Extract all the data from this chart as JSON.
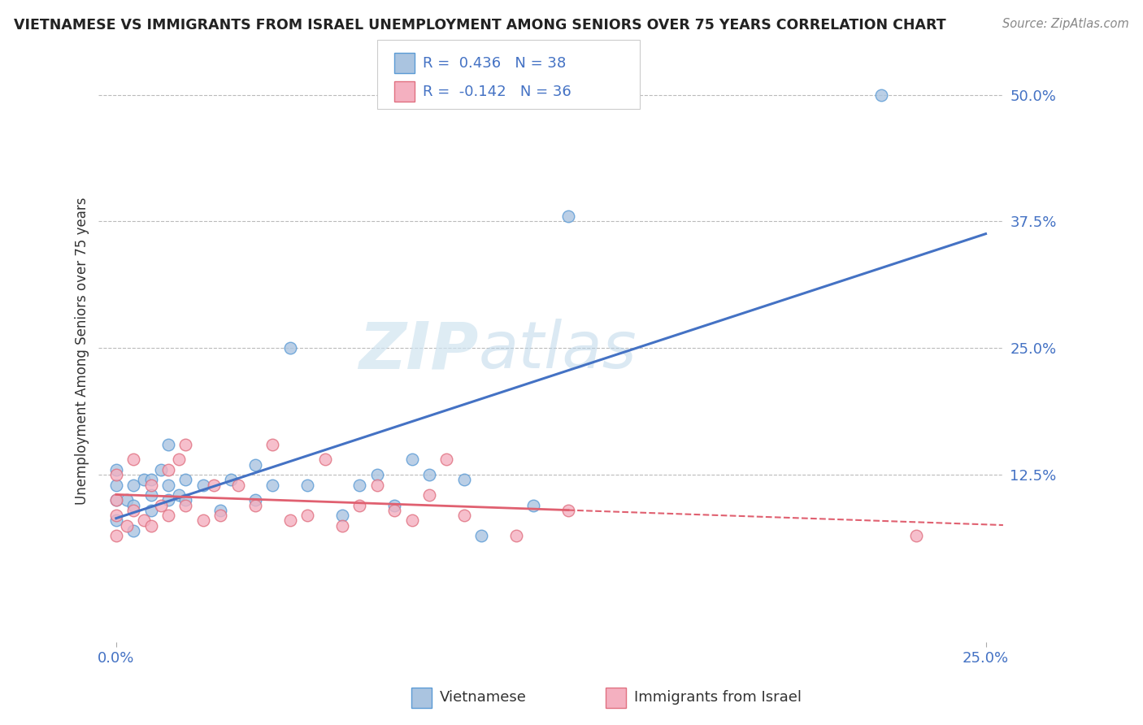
{
  "title": "VIETNAMESE VS IMMIGRANTS FROM ISRAEL UNEMPLOYMENT AMONG SENIORS OVER 75 YEARS CORRELATION CHART",
  "source": "Source: ZipAtlas.com",
  "ylabel": "Unemployment Among Seniors over 75 years",
  "xlim": [
    -0.005,
    0.255
  ],
  "ylim": [
    -0.04,
    0.535
  ],
  "ytick_values": [
    0.125,
    0.25,
    0.375,
    0.5
  ],
  "xtick_values": [
    0.0,
    0.25
  ],
  "r_vietnamese": 0.436,
  "n_vietnamese": 38,
  "r_israel": -0.142,
  "n_israel": 36,
  "color_vietnamese": "#aac4e0",
  "color_israel": "#f4b0c0",
  "edge_color_vietnamese": "#5b9bd5",
  "edge_color_israel": "#e07080",
  "line_color_vietnamese": "#4472c4",
  "line_color_israel": "#e06070",
  "watermark_color": "#d0e4f0",
  "background_color": "#ffffff",
  "tick_label_color": "#4472c4",
  "scatter_vietnamese_x": [
    0.0,
    0.0,
    0.0,
    0.0,
    0.003,
    0.005,
    0.005,
    0.008,
    0.01,
    0.01,
    0.01,
    0.013,
    0.015,
    0.015,
    0.015,
    0.018,
    0.02,
    0.02,
    0.025,
    0.03,
    0.033,
    0.04,
    0.04,
    0.045,
    0.05,
    0.055,
    0.065,
    0.07,
    0.075,
    0.08,
    0.085,
    0.09,
    0.1,
    0.105,
    0.12,
    0.13,
    0.22,
    0.005
  ],
  "scatter_vietnamese_y": [
    0.08,
    0.1,
    0.115,
    0.13,
    0.1,
    0.095,
    0.115,
    0.12,
    0.09,
    0.105,
    0.12,
    0.13,
    0.1,
    0.115,
    0.155,
    0.105,
    0.1,
    0.12,
    0.115,
    0.09,
    0.12,
    0.1,
    0.135,
    0.115,
    0.25,
    0.115,
    0.085,
    0.115,
    0.125,
    0.095,
    0.14,
    0.125,
    0.12,
    0.065,
    0.095,
    0.38,
    0.5,
    0.07
  ],
  "scatter_israel_x": [
    0.0,
    0.0,
    0.0,
    0.0,
    0.003,
    0.005,
    0.005,
    0.008,
    0.01,
    0.01,
    0.013,
    0.015,
    0.015,
    0.018,
    0.02,
    0.02,
    0.025,
    0.028,
    0.03,
    0.035,
    0.04,
    0.045,
    0.05,
    0.055,
    0.06,
    0.065,
    0.07,
    0.075,
    0.08,
    0.085,
    0.09,
    0.095,
    0.1,
    0.115,
    0.13,
    0.23
  ],
  "scatter_israel_y": [
    0.065,
    0.085,
    0.1,
    0.125,
    0.075,
    0.09,
    0.14,
    0.08,
    0.075,
    0.115,
    0.095,
    0.085,
    0.13,
    0.14,
    0.095,
    0.155,
    0.08,
    0.115,
    0.085,
    0.115,
    0.095,
    0.155,
    0.08,
    0.085,
    0.14,
    0.075,
    0.095,
    0.115,
    0.09,
    0.08,
    0.105,
    0.14,
    0.085,
    0.065,
    0.09,
    0.065
  ]
}
